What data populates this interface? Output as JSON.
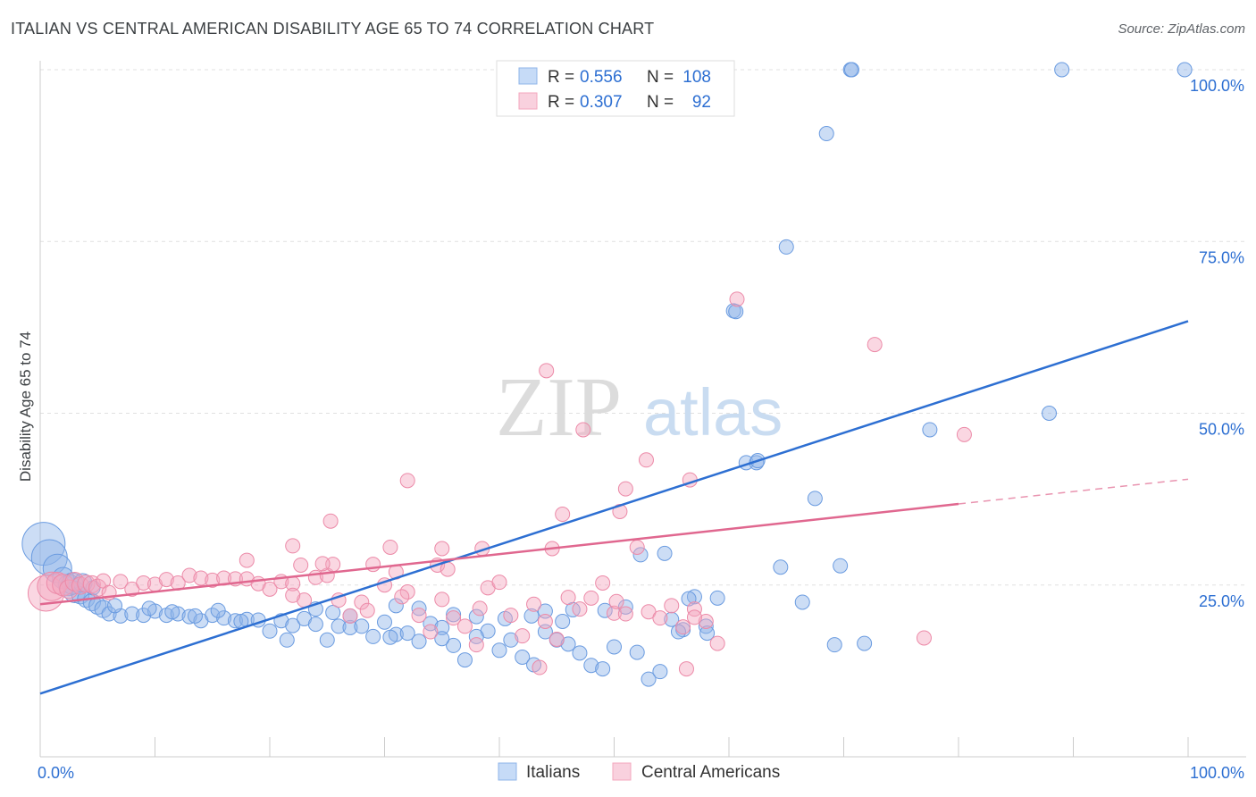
{
  "header": {
    "title": "ITALIAN VS CENTRAL AMERICAN DISABILITY AGE 65 TO 74 CORRELATION CHART",
    "source": "Source: ZipAtlas.com"
  },
  "watermark": {
    "zip": "ZIP",
    "atlas": "atlas"
  },
  "legend_box": {
    "rows": [
      {
        "r_label": "R = ",
        "r_value": "0.556",
        "n_label": "N = ",
        "n_value": "108",
        "color": "#8fb4e8"
      },
      {
        "r_label": "R = ",
        "r_value": "0.307",
        "n_label": "N = ",
        "n_value": "92",
        "color": "#f4a7be"
      }
    ]
  },
  "chart_data": {
    "type": "scatter",
    "title": "ITALIAN VS CENTRAL AMERICAN DISABILITY AGE 65 TO 74 CORRELATION CHART",
    "xlabel": "",
    "ylabel": "Disability Age 65 to 74",
    "xlim": [
      0,
      100
    ],
    "ylim": [
      0,
      100
    ],
    "x_tick_labels": [
      "0.0%",
      "100.0%"
    ],
    "y_ticks": [
      25,
      50,
      75,
      100
    ],
    "y_tick_labels": [
      "25.0%",
      "50.0%",
      "75.0%",
      "100.0%"
    ],
    "grid": true,
    "legend_position": "bottom",
    "series": [
      {
        "name": "Italians",
        "color": "#8fb4e8",
        "stroke": "#6a9be0",
        "trend_color": "#2d6fd2",
        "r": 0.556,
        "n": 108,
        "trend": {
          "x": [
            0,
            100
          ],
          "y": [
            9.2,
            63.4
          ]
        },
        "points": [
          [
            0.3,
            31,
            3
          ],
          [
            0.8,
            29,
            2.5
          ],
          [
            1.5,
            27.4,
            2
          ],
          [
            2,
            26,
            1.5
          ],
          [
            2.5,
            25,
            1.5
          ],
          [
            3,
            24,
            1.5
          ],
          [
            3.5,
            23.5,
            1.2
          ],
          [
            4,
            23,
            1.2
          ],
          [
            4.5,
            22.5,
            1.2
          ],
          [
            5,
            22,
            1.2
          ],
          [
            5.5,
            21.5,
            1.2
          ],
          [
            6,
            20.8,
            1
          ],
          [
            7,
            20.5,
            1
          ],
          [
            8,
            20.8,
            1
          ],
          [
            9,
            20.6,
            1
          ],
          [
            10,
            21.2,
            1
          ],
          [
            11,
            20.6,
            1
          ],
          [
            12,
            20.8,
            1
          ],
          [
            13,
            20.4,
            1
          ],
          [
            14,
            19.8,
            1
          ],
          [
            15,
            20.6,
            1
          ],
          [
            16,
            20.2,
            1
          ],
          [
            17,
            19.8,
            1
          ],
          [
            18,
            20,
            1
          ],
          [
            19,
            19.9,
            1
          ],
          [
            20,
            18.3,
            1
          ],
          [
            21,
            19.8,
            1
          ],
          [
            22,
            19.1,
            1
          ],
          [
            23,
            20.1,
            1
          ],
          [
            24,
            19.3,
            1
          ],
          [
            25,
            17,
            1
          ],
          [
            26,
            19,
            1
          ],
          [
            27,
            18.8,
            1
          ],
          [
            28,
            19,
            1
          ],
          [
            29,
            17.5,
            1
          ],
          [
            30,
            19.6,
            1
          ],
          [
            31,
            17.8,
            1
          ],
          [
            32,
            18,
            1
          ],
          [
            33,
            16.8,
            1
          ],
          [
            34,
            19.4,
            1
          ],
          [
            35,
            18.8,
            1
          ],
          [
            36,
            16.2,
            1
          ],
          [
            37,
            14.1,
            1
          ],
          [
            38,
            20.4,
            1
          ],
          [
            39,
            18.3,
            1
          ],
          [
            40,
            15.5,
            1
          ],
          [
            41,
            17,
            1
          ],
          [
            42,
            14.5,
            1
          ],
          [
            43,
            13.4,
            1
          ],
          [
            44,
            18.2,
            1
          ],
          [
            45,
            17,
            1
          ],
          [
            46,
            16.4,
            1
          ],
          [
            47,
            15.1,
            1
          ],
          [
            48,
            13.3,
            1
          ],
          [
            49,
            12.8,
            1
          ],
          [
            50,
            16,
            1
          ],
          [
            51,
            21.8,
            1
          ],
          [
            52,
            15.2,
            1
          ],
          [
            53,
            11.3,
            1
          ],
          [
            54,
            12.4,
            1
          ],
          [
            55,
            20,
            1
          ],
          [
            56,
            18.5,
            1
          ],
          [
            57,
            23.3,
            1
          ],
          [
            58,
            19,
            1
          ],
          [
            59,
            23.1,
            1
          ],
          [
            42.8,
            20.5,
            1
          ],
          [
            46.4,
            21.4,
            1
          ],
          [
            49.2,
            21.3,
            1
          ],
          [
            52.3,
            29.4,
            1
          ],
          [
            54.4,
            29.6,
            1
          ],
          [
            31,
            22,
            1
          ],
          [
            24,
            21.5,
            1
          ],
          [
            27,
            20.5,
            1
          ],
          [
            33,
            21.6,
            1
          ],
          [
            36,
            20.7,
            1
          ],
          [
            35,
            17.2,
            1
          ],
          [
            38,
            17.5,
            1
          ],
          [
            44,
            21.2,
            1
          ],
          [
            55.6,
            18.2,
            1
          ],
          [
            58.1,
            18,
            1
          ],
          [
            17.5,
            19.7,
            1
          ],
          [
            25.5,
            21,
            1
          ],
          [
            40.5,
            20.1,
            1
          ],
          [
            45.5,
            19.7,
            1
          ],
          [
            21.5,
            17,
            1
          ],
          [
            30.5,
            17.4,
            1
          ],
          [
            2.8,
            25.2,
            1.5
          ],
          [
            3.7,
            25.3,
            1.3
          ],
          [
            4.6,
            24.6,
            1
          ],
          [
            6.5,
            22,
            1
          ],
          [
            9.5,
            21.6,
            1
          ],
          [
            11.5,
            21.1,
            1
          ],
          [
            13.5,
            20.5,
            1
          ],
          [
            15.5,
            21.3,
            1
          ],
          [
            56.5,
            23,
            1
          ],
          [
            61.5,
            42.8,
            1
          ],
          [
            62.4,
            42.8,
            1
          ],
          [
            67.5,
            37.6,
            1
          ],
          [
            62.5,
            43.1,
            1
          ],
          [
            60.4,
            64.9,
            1
          ],
          [
            60.6,
            64.8,
            1
          ],
          [
            65,
            74.2,
            1
          ],
          [
            68.5,
            90.7,
            1
          ],
          [
            70.6,
            100,
            1
          ],
          [
            70.7,
            100,
            1
          ],
          [
            89,
            100,
            1
          ],
          [
            99.7,
            100,
            1
          ],
          [
            69.7,
            27.8,
            1
          ],
          [
            69.2,
            16.3,
            1
          ],
          [
            71.8,
            16.5,
            1
          ],
          [
            64.5,
            27.6,
            1
          ],
          [
            77.5,
            47.6,
            1
          ],
          [
            87.9,
            50,
            1
          ],
          [
            66.4,
            22.5,
            1
          ]
        ]
      },
      {
        "name": "Central Americans",
        "color": "#f4a7be",
        "stroke": "#ec8aa8",
        "trend_color": "#e0678f",
        "r": 0.307,
        "n": 92,
        "trend": {
          "x": [
            0,
            80
          ],
          "y": [
            22.2,
            36.8
          ]
        },
        "trend_dashed": {
          "x": [
            80,
            100
          ],
          "y": [
            36.8,
            40.4
          ]
        },
        "points": [
          [
            0.5,
            23.8,
            2.5
          ],
          [
            1,
            24.8,
            2
          ],
          [
            1.5,
            25.3,
            1.5
          ],
          [
            2,
            25,
            1.5
          ],
          [
            2.5,
            24.4,
            1.3
          ],
          [
            3,
            25.5,
            1.3
          ],
          [
            3.5,
            24.9,
            1.2
          ],
          [
            4,
            25.2,
            1.2
          ],
          [
            4.5,
            25.1,
            1.2
          ],
          [
            5,
            24.6,
            1.2
          ],
          [
            5.5,
            25.6,
            1
          ],
          [
            6,
            23.9,
            1
          ],
          [
            7,
            25.5,
            1
          ],
          [
            8,
            24.4,
            1
          ],
          [
            9,
            25.3,
            1
          ],
          [
            10,
            25.1,
            1
          ],
          [
            11,
            25.8,
            1
          ],
          [
            12,
            25.3,
            1
          ],
          [
            13,
            26.4,
            1
          ],
          [
            14,
            26,
            1
          ],
          [
            15,
            25.7,
            1
          ],
          [
            16,
            26,
            1
          ],
          [
            17,
            25.9,
            1
          ],
          [
            18,
            25.9,
            1
          ],
          [
            19,
            25.2,
            1
          ],
          [
            20,
            24.4,
            1
          ],
          [
            21,
            25.5,
            1
          ],
          [
            22,
            25.2,
            1
          ],
          [
            23,
            22.8,
            1
          ],
          [
            24,
            26.1,
            1
          ],
          [
            25,
            26.4,
            1
          ],
          [
            26,
            22.8,
            1
          ],
          [
            27,
            20.5,
            1
          ],
          [
            28,
            22.5,
            1
          ],
          [
            29,
            28,
            1
          ],
          [
            30,
            25,
            1
          ],
          [
            31,
            26.9,
            1
          ],
          [
            32,
            24,
            1
          ],
          [
            33,
            20.6,
            1
          ],
          [
            34,
            18.2,
            1
          ],
          [
            35,
            22.9,
            1
          ],
          [
            36,
            20.2,
            1
          ],
          [
            37,
            19,
            1
          ],
          [
            38,
            16.3,
            1
          ],
          [
            39,
            24.6,
            1
          ],
          [
            40,
            25.4,
            1
          ],
          [
            41,
            20.6,
            1
          ],
          [
            42,
            17.6,
            1
          ],
          [
            43,
            22.2,
            1
          ],
          [
            44,
            19.7,
            1
          ],
          [
            45,
            17.1,
            1
          ],
          [
            46,
            23.2,
            1
          ],
          [
            47,
            21.5,
            1
          ],
          [
            48,
            23.1,
            1
          ],
          [
            49,
            25.3,
            1
          ],
          [
            50,
            20.9,
            1
          ],
          [
            51,
            20.8,
            1
          ],
          [
            52,
            30.5,
            1
          ],
          [
            53,
            21.1,
            1
          ],
          [
            54,
            20.2,
            1
          ],
          [
            55,
            22,
            1
          ],
          [
            56,
            18.9,
            1
          ],
          [
            57,
            21.5,
            1
          ],
          [
            58,
            19.7,
            1
          ],
          [
            59,
            16.5,
            1
          ],
          [
            18,
            28.6,
            1
          ],
          [
            22,
            23.5,
            1
          ],
          [
            25.5,
            28,
            1
          ],
          [
            28.5,
            21.3,
            1
          ],
          [
            31.5,
            23.3,
            1
          ],
          [
            34.6,
            27.9,
            1
          ],
          [
            35.5,
            27.3,
            1
          ],
          [
            38.3,
            21.6,
            1
          ],
          [
            44.6,
            30.3,
            1
          ],
          [
            50.2,
            22.6,
            1
          ],
          [
            43.5,
            13,
            1
          ],
          [
            56.3,
            12.8,
            1
          ],
          [
            57,
            20.3,
            1
          ],
          [
            35,
            30.3,
            1
          ],
          [
            30.5,
            30.5,
            1
          ],
          [
            22,
            30.7,
            1
          ],
          [
            22.7,
            27.9,
            1
          ],
          [
            38.5,
            30.3,
            1
          ],
          [
            24.6,
            28.1,
            1
          ],
          [
            25.3,
            34.3,
            1
          ],
          [
            32,
            40.2,
            1
          ],
          [
            44.1,
            56.2,
            1
          ],
          [
            47.3,
            47.6,
            1
          ],
          [
            50.5,
            35.7,
            1
          ],
          [
            51,
            39,
            1
          ],
          [
            52.8,
            43.2,
            1
          ],
          [
            56.6,
            40.3,
            1
          ],
          [
            60.7,
            66.6,
            1
          ],
          [
            72.7,
            60,
            1
          ],
          [
            77,
            17.3,
            1
          ],
          [
            80.5,
            46.9,
            1
          ],
          [
            45.5,
            35.3,
            1
          ]
        ]
      }
    ]
  }
}
